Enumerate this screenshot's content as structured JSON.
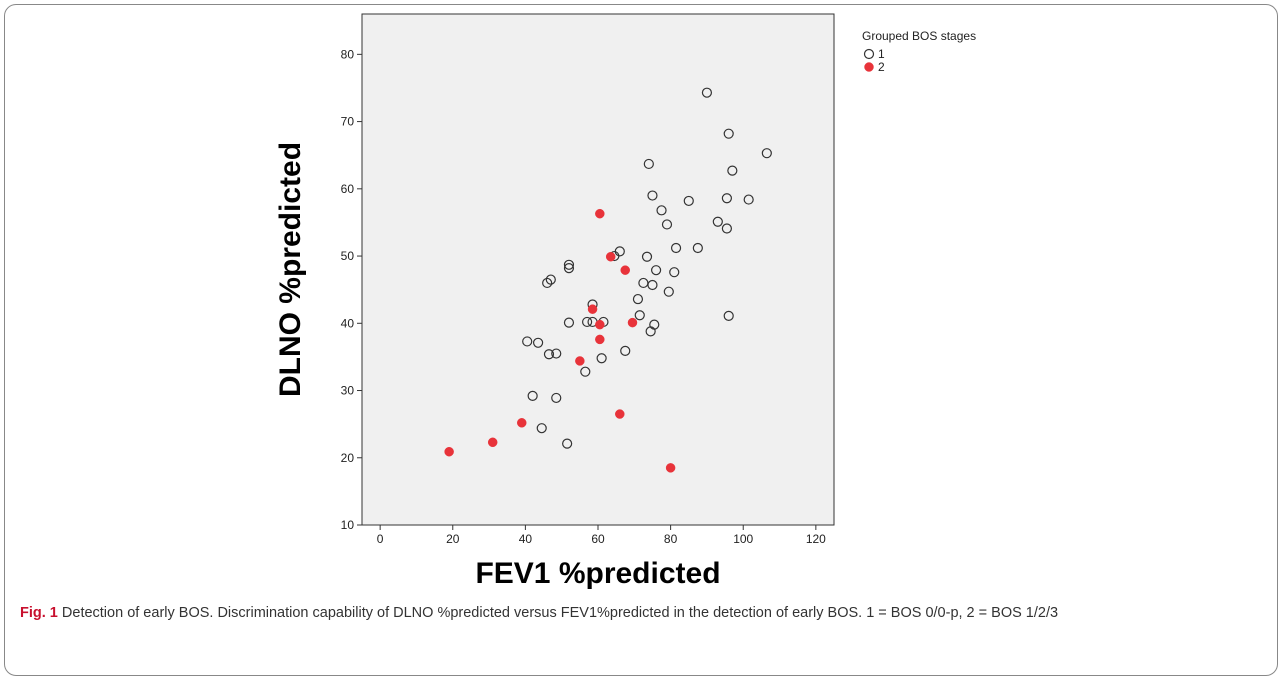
{
  "chart_data": {
    "type": "scatter",
    "xlabel": "FEV1 %predicted",
    "ylabel": "DLNO %predicted",
    "xlim": [
      -5,
      125
    ],
    "ylim": [
      10,
      86
    ],
    "xticks": [
      "0",
      "20",
      "40",
      "60",
      "80",
      "100",
      "120"
    ],
    "yticks": [
      "10",
      "20",
      "30",
      "40",
      "50",
      "60",
      "70",
      "80"
    ],
    "legend": {
      "title": "Grouped BOS stages",
      "placement": "top-right"
    },
    "series": [
      {
        "name": "1",
        "marker": "open-circle",
        "color": "#333333",
        "points": [
          [
            90,
            74.3
          ],
          [
            96,
            68.2
          ],
          [
            106.5,
            65.3
          ],
          [
            74,
            63.7
          ],
          [
            97,
            62.7
          ],
          [
            75,
            59
          ],
          [
            85,
            58.2
          ],
          [
            95.5,
            58.6
          ],
          [
            101.5,
            58.4
          ],
          [
            77.5,
            56.8
          ],
          [
            93,
            55.1
          ],
          [
            79,
            54.7
          ],
          [
            95.5,
            54.1
          ],
          [
            81.5,
            51.2
          ],
          [
            87.5,
            51.2
          ],
          [
            66,
            50.7
          ],
          [
            64.5,
            50
          ],
          [
            73.5,
            49.9
          ],
          [
            52,
            48.7
          ],
          [
            52,
            48.2
          ],
          [
            81,
            47.6
          ],
          [
            76,
            47.9
          ],
          [
            47,
            46.5
          ],
          [
            46,
            46
          ],
          [
            72.5,
            46
          ],
          [
            75,
            45.7
          ],
          [
            79.5,
            44.7
          ],
          [
            71,
            43.6
          ],
          [
            58.5,
            42.8
          ],
          [
            71.5,
            41.2
          ],
          [
            96,
            41.1
          ],
          [
            52,
            40.1
          ],
          [
            57,
            40.2
          ],
          [
            58.5,
            40.2
          ],
          [
            61.5,
            40.2
          ],
          [
            75.5,
            39.8
          ],
          [
            74.5,
            38.8
          ],
          [
            40.5,
            37.3
          ],
          [
            43.5,
            37.1
          ],
          [
            67.5,
            35.9
          ],
          [
            46.5,
            35.4
          ],
          [
            48.5,
            35.5
          ],
          [
            61,
            34.8
          ],
          [
            56.5,
            32.8
          ],
          [
            42,
            29.2
          ],
          [
            48.5,
            28.9
          ],
          [
            44.5,
            24.4
          ],
          [
            51.5,
            22.1
          ]
        ]
      },
      {
        "name": "2",
        "marker": "filled-circle",
        "color": "#e8333a",
        "points": [
          [
            60.5,
            56.3
          ],
          [
            63.5,
            49.9
          ],
          [
            67.5,
            47.9
          ],
          [
            58.5,
            42.1
          ],
          [
            60.5,
            39.8
          ],
          [
            69.5,
            40.1
          ],
          [
            60.5,
            37.6
          ],
          [
            55,
            34.4
          ],
          [
            66,
            26.5
          ],
          [
            39,
            25.2
          ],
          [
            31,
            22.3
          ],
          [
            19,
            20.9
          ],
          [
            80,
            18.5
          ]
        ]
      }
    ]
  },
  "caption": {
    "label": "Fig. 1",
    "text": " Detection of early BOS. Discrimination capability of DLNO %predicted versus FEV1%predicted in the detection of early BOS. 1 = BOS 0/0-p, 2 = BOS 1/2/3"
  }
}
